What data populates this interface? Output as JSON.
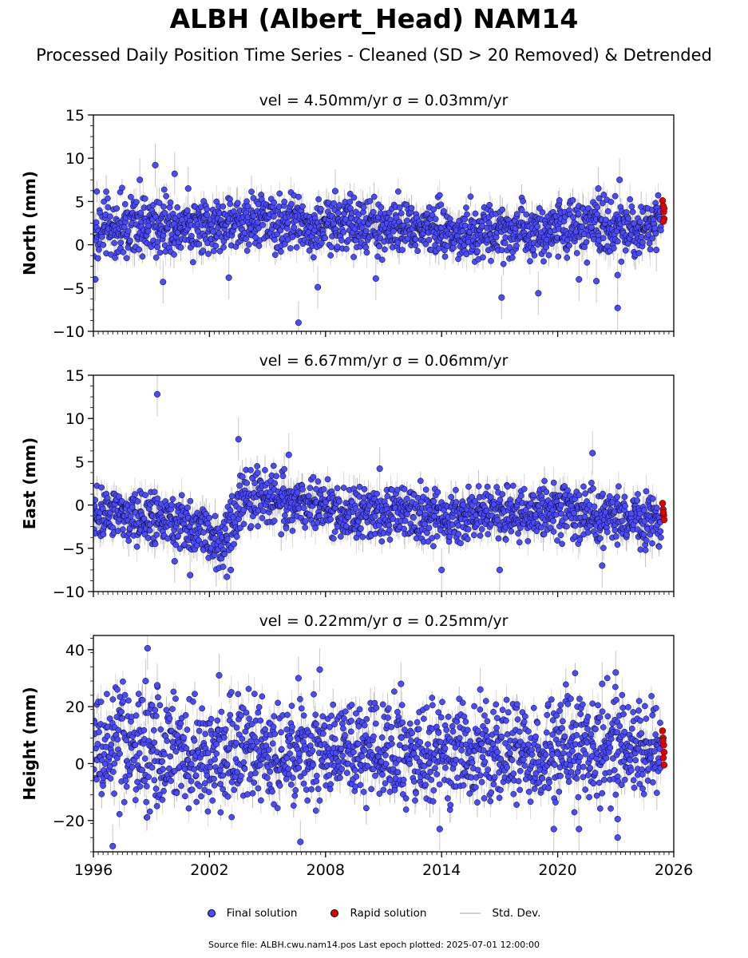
{
  "header": {
    "title": "ALBH (Albert_Head) NAM14",
    "subtitle": "Processed Daily Position Time Series - Cleaned (SD > 20 Removed) & Detrended"
  },
  "legend": {
    "final_label": "Final solution",
    "rapid_label": "Rapid solution",
    "std_label": "Std. Dev."
  },
  "footer": {
    "source": "Source file: ALBH.cwu.nam14.pos  Last epoch plotted: 2025-07-01 12:00:00"
  },
  "colors": {
    "final": "#4a4aff",
    "rapid": "#e00000",
    "std_dev": "#c8c8c8",
    "std_dev_dense": "#555555",
    "marker_edge": "#000000"
  },
  "chart_data": [
    {
      "type": "scatter",
      "component": "north",
      "panel_title": "vel = 4.50mm/yr   σ = 0.03mm/yr",
      "ylabel": "North (mm)",
      "xlim": [
        1996,
        2026
      ],
      "ylim": [
        -10,
        15
      ],
      "yticks": [
        "15",
        "10",
        "5",
        "0",
        "−5",
        "−10"
      ],
      "ytick_values": [
        15,
        10,
        5,
        0,
        -5,
        -10
      ],
      "xticks": [],
      "series": [
        {
          "band": [
            [
              1996,
              1.5,
              3.0
            ],
            [
              1998,
              2.0,
              3.0
            ],
            [
              1999.5,
              2.5,
              3.0
            ],
            [
              2002,
              2.0,
              2.8
            ],
            [
              2004,
              2.8,
              2.8
            ],
            [
              2006,
              2.5,
              2.8
            ],
            [
              2008,
              2.0,
              2.7
            ],
            [
              2010,
              2.0,
              2.8
            ],
            [
              2012,
              2.0,
              2.7
            ],
            [
              2014,
              1.5,
              2.7
            ],
            [
              2016,
              1.5,
              2.8
            ],
            [
              2018,
              1.5,
              2.8
            ],
            [
              2020,
              2.0,
              2.8
            ],
            [
              2022,
              2.0,
              2.8
            ],
            [
              2024,
              2.0,
              2.8
            ],
            [
              2025.4,
              3.0,
              2.5
            ]
          ]
        },
        {
          "outliers": [
            [
              1996.1,
              -4.0
            ],
            [
              1999.2,
              9.2
            ],
            [
              1999.6,
              -4.3
            ],
            [
              2003.0,
              -3.8
            ],
            [
              2006.6,
              -9.0
            ],
            [
              2007.6,
              -4.9
            ],
            [
              2010.6,
              -3.9
            ],
            [
              2017.1,
              -6.1
            ],
            [
              2019.0,
              -5.6
            ],
            [
              2021.1,
              -4.0
            ],
            [
              2022.0,
              -4.2
            ],
            [
              2023.1,
              -7.3
            ],
            [
              2023.1,
              -3.5
            ],
            [
              2023.2,
              7.5
            ],
            [
              2022.1,
              6.5
            ],
            [
              1998.4,
              7.5
            ],
            [
              2000.2,
              8.2
            ],
            [
              2008.5,
              6.2
            ],
            [
              2000.9,
              6.5
            ],
            [
              2025.1,
              -0.6
            ]
          ]
        },
        {
          "rapid": [
            [
              2025.42,
              5.1
            ],
            [
              2025.45,
              4.5
            ],
            [
              2025.48,
              3.8
            ],
            [
              2025.5,
              3.0
            ],
            [
              2025.46,
              2.7
            ],
            [
              2025.5,
              4.2
            ]
          ]
        }
      ]
    },
    {
      "type": "scatter",
      "component": "east",
      "panel_title": "vel = 6.67mm/yr   σ = 0.06mm/yr",
      "ylabel": "East (mm)",
      "xlim": [
        1996,
        2026
      ],
      "ylim": [
        -10,
        15
      ],
      "yticks": [
        "15",
        "10",
        "5",
        "0",
        "−5",
        "−10"
      ],
      "ytick_values": [
        15,
        10,
        5,
        0,
        -5,
        -10
      ],
      "xticks": [],
      "series": [
        {
          "band": [
            [
              1996,
              -1.0,
              2.6
            ],
            [
              1998,
              -1.5,
              2.6
            ],
            [
              2000,
              -1.5,
              2.6
            ],
            [
              2001.5,
              -3.0,
              2.8
            ],
            [
              2002.8,
              -4.5,
              2.6
            ],
            [
              2003.6,
              0.5,
              2.8
            ],
            [
              2005,
              1.5,
              2.8
            ],
            [
              2006.3,
              0.0,
              2.6
            ],
            [
              2007.5,
              0.5,
              2.6
            ],
            [
              2008.5,
              -1.0,
              2.6
            ],
            [
              2010,
              -1.0,
              2.5
            ],
            [
              2012,
              -1.0,
              2.5
            ],
            [
              2014,
              -1.5,
              2.6
            ],
            [
              2016,
              -1.0,
              2.6
            ],
            [
              2018,
              -1.0,
              2.6
            ],
            [
              2020,
              -0.5,
              2.6
            ],
            [
              2022,
              -1.0,
              2.6
            ],
            [
              2024,
              -1.5,
              2.6
            ],
            [
              2025.4,
              -2.0,
              2.4
            ]
          ]
        },
        {
          "outliers": [
            [
              1999.3,
              12.8
            ],
            [
              2003.5,
              7.6
            ],
            [
              2001.0,
              -8.1
            ],
            [
              2002.9,
              -8.3
            ],
            [
              2014.0,
              -7.5
            ],
            [
              2017.0,
              -7.5
            ],
            [
              2021.8,
              6.0
            ],
            [
              2022.3,
              -7.0
            ],
            [
              2000.2,
              -6.5
            ],
            [
              2003.1,
              -7.5
            ],
            [
              2006.1,
              5.8
            ],
            [
              2010.8,
              4.2
            ]
          ]
        },
        {
          "rapid": [
            [
              2025.42,
              0.2
            ],
            [
              2025.45,
              -0.5
            ],
            [
              2025.48,
              -1.2
            ],
            [
              2025.5,
              -1.7
            ],
            [
              2025.46,
              -0.9
            ]
          ]
        }
      ]
    },
    {
      "type": "scatter",
      "component": "height",
      "panel_title": "vel = 0.22mm/yr   σ = 0.25mm/yr",
      "ylabel": "Height (mm)",
      "xlim": [
        1996,
        2026
      ],
      "ylim": [
        -31,
        45
      ],
      "yticks": [
        "40",
        "20",
        "0",
        "−20"
      ],
      "ytick_values": [
        40,
        20,
        0,
        -20
      ],
      "xticks": [
        "1996",
        "2002",
        "2008",
        "2014",
        "2020",
        "2026"
      ],
      "xtick_values": [
        1996,
        2002,
        2008,
        2014,
        2020,
        2026
      ],
      "series": [
        {
          "band": [
            [
              1996,
              5.0,
              16
            ],
            [
              1998,
              5.0,
              17
            ],
            [
              2000,
              5.0,
              17
            ],
            [
              2002,
              5.0,
              16
            ],
            [
              2004,
              4.0,
              15
            ],
            [
              2006,
              4.0,
              15
            ],
            [
              2008,
              4.0,
              15
            ],
            [
              2010,
              3.0,
              15
            ],
            [
              2012,
              3.0,
              15
            ],
            [
              2014,
              3.0,
              15
            ],
            [
              2016,
              3.0,
              15
            ],
            [
              2018,
              3.0,
              15
            ],
            [
              2020,
              5.0,
              16
            ],
            [
              2022,
              6.0,
              16
            ],
            [
              2024,
              5.0,
              15
            ],
            [
              2025.4,
              5.0,
              12
            ]
          ]
        },
        {
          "outliers": [
            [
              1998.8,
              40.5
            ],
            [
              1997.0,
              -29.0
            ],
            [
              2006.7,
              -27.5
            ],
            [
              2007.7,
              33.0
            ],
            [
              2013.9,
              -23.0
            ],
            [
              2023.1,
              -26.0
            ],
            [
              2023.1,
              -19.5
            ],
            [
              2023.0,
              32.0
            ],
            [
              2019.8,
              -23.0
            ],
            [
              2021.1,
              -23.0
            ],
            [
              2002.5,
              31.0
            ],
            [
              2006.6,
              30.0
            ],
            [
              2011.9,
              28.0
            ],
            [
              2016.0,
              26.0
            ],
            [
              1998.7,
              29.0
            ],
            [
              1999.3,
              27.5
            ],
            [
              2022.3,
              28.0
            ]
          ]
        },
        {
          "rapid": [
            [
              2025.42,
              11.5
            ],
            [
              2025.45,
              9.0
            ],
            [
              2025.48,
              6.5
            ],
            [
              2025.5,
              4.0
            ],
            [
              2025.46,
              2.0
            ],
            [
              2025.5,
              -0.5
            ],
            [
              2025.44,
              8.0
            ]
          ]
        }
      ]
    }
  ]
}
